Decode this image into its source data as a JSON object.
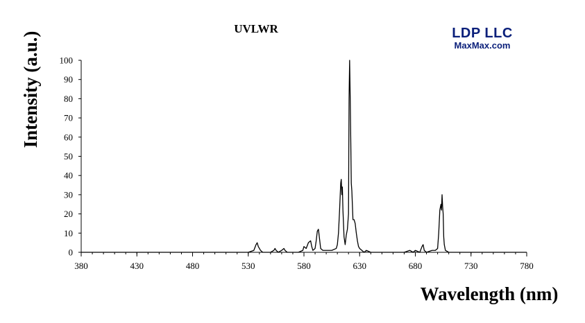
{
  "chart_data": {
    "type": "line",
    "title": "UVLWR",
    "xlabel": "Wavelength (nm)",
    "ylabel": "Intensity (a.u.)",
    "xlim": [
      380,
      780
    ],
    "ylim": [
      0,
      100
    ],
    "xticks": [
      380,
      430,
      480,
      530,
      580,
      630,
      680,
      730,
      780
    ],
    "yticks": [
      0,
      10,
      20,
      30,
      40,
      50,
      60,
      70,
      80,
      90,
      100
    ],
    "grid": false,
    "series": [
      {
        "color": "#000000",
        "x": [
          380,
          530,
          535,
          537,
          538,
          539,
          541,
          543,
          550,
          553,
          554,
          555,
          557,
          560,
          562,
          563,
          565,
          575,
          579,
          580,
          582,
          584,
          586,
          587,
          588,
          590,
          591,
          592,
          593,
          594,
          595,
          597,
          600,
          605,
          609,
          610,
          611,
          612,
          613,
          613.5,
          614,
          614.5,
          615,
          616,
          617,
          618,
          619,
          620,
          620.5,
          621,
          621.5,
          622,
          622.5,
          623,
          624,
          625,
          626,
          627,
          628,
          629,
          630,
          632,
          634,
          636,
          640,
          650,
          660,
          670,
          675,
          678,
          680,
          684,
          686,
          687,
          688,
          690,
          695,
          698,
          700,
          701,
          702,
          703,
          703.5,
          704,
          704.5,
          705,
          705.5,
          706,
          707,
          710,
          715,
          780
        ],
        "y": [
          0,
          0,
          1,
          4,
          5,
          3,
          1,
          0,
          0,
          1,
          2,
          1,
          0,
          1,
          2,
          1,
          0,
          0,
          1,
          3,
          2,
          5,
          6,
          3,
          1,
          2,
          6,
          11,
          12,
          7,
          2,
          1,
          1,
          1,
          2,
          4,
          10,
          22,
          36,
          38,
          30,
          34,
          22,
          8,
          4,
          9,
          12,
          20,
          80,
          100,
          82,
          60,
          36,
          32,
          17,
          17,
          15,
          10,
          6,
          3,
          2,
          1,
          0,
          1,
          0,
          0,
          0,
          0,
          1,
          0,
          1,
          0,
          3,
          4,
          1,
          0,
          1,
          1,
          2,
          10,
          22,
          25,
          22,
          30,
          24,
          20,
          8,
          4,
          1,
          0,
          0,
          0
        ]
      }
    ]
  },
  "logo": {
    "brand": "LDP LLC",
    "site": "MaxMax.com"
  }
}
